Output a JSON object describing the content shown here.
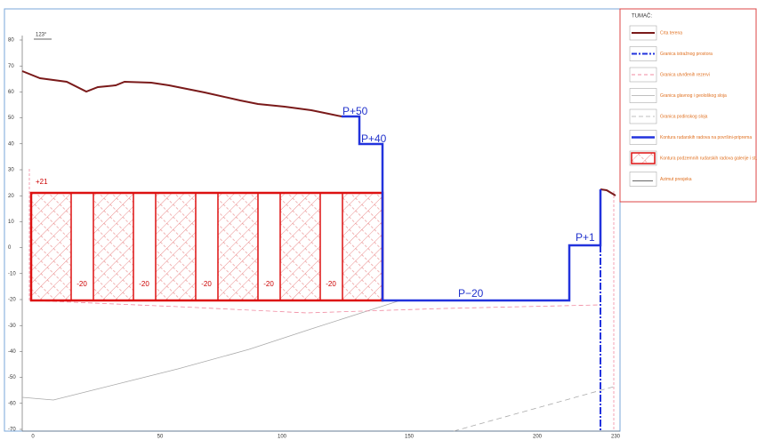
{
  "section": {
    "azimuth": "123°",
    "y_labels": [
      "80",
      "70",
      "60",
      "50",
      "40",
      "30",
      "20",
      "10",
      "0",
      "-10",
      "-20",
      "-30",
      "-40",
      "-50",
      "-60",
      "-70"
    ],
    "x_labels": [
      "0",
      "50",
      "100",
      "150",
      "200",
      "230"
    ],
    "top_level": "+21",
    "pillar_labels": [
      "-20",
      "-20",
      "-20",
      "-20",
      "-20"
    ],
    "work_labels": [
      "P+50",
      "P+40",
      "P−20",
      "P+1"
    ]
  },
  "legend": {
    "title": "TUMAČ:",
    "items": [
      "Crta terena",
      "Granica istražnog prostora",
      "Granica utvrđenih rezervi",
      "Granica glavnog i geološkog sloja",
      "Granica podinskog sloja",
      "Kontura rudarskih radova na površini-pripremа",
      "Kontura podzemnih rudarskih radova galerije i stupovi",
      "Azimut presjeka"
    ]
  }
}
